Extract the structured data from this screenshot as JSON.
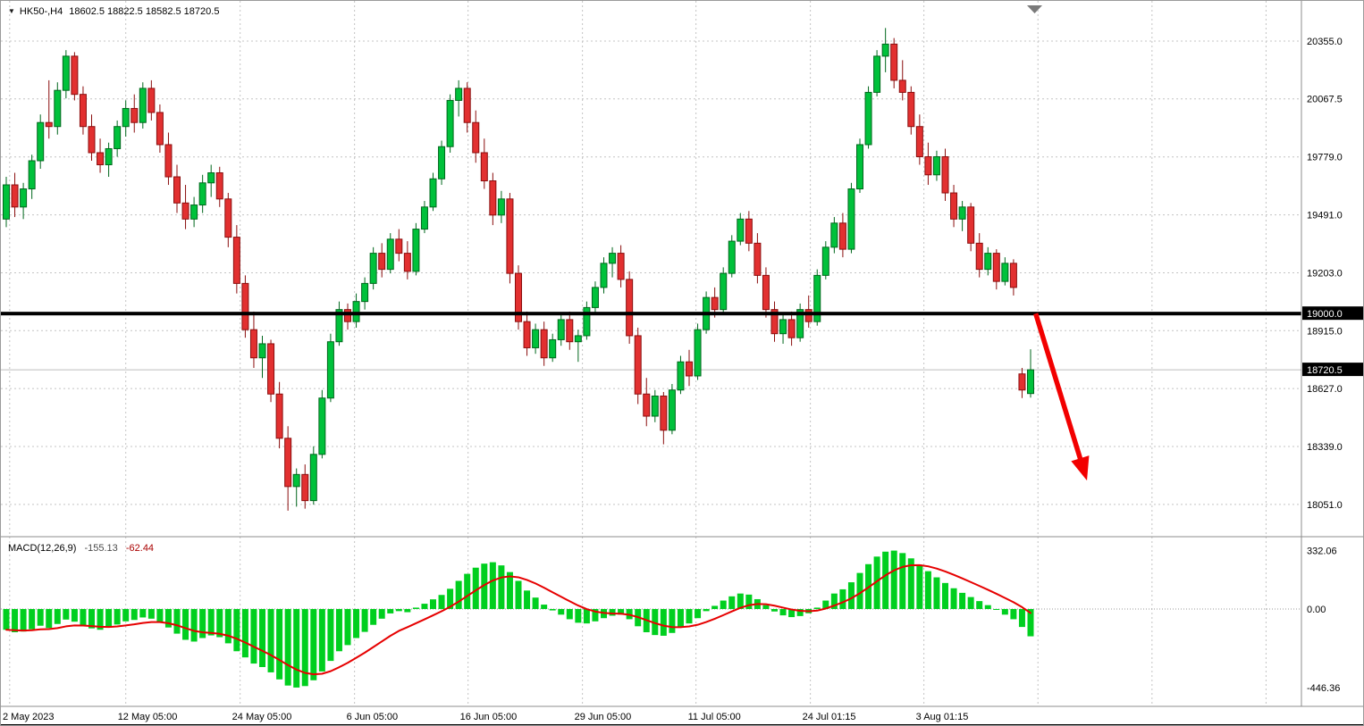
{
  "header": {
    "marker": "▼",
    "symbol": "HK50-,H4",
    "ohlc": "18602.5 18822.5 18582.5 18720.5"
  },
  "indicator": {
    "name": "MACD(12,26,9)",
    "macd_value": "-155.13",
    "signal_value": "-62.44"
  },
  "price_axis": {
    "labels": [
      "20355.0",
      "20067.5",
      "19779.0",
      "19491.0",
      "19203.0",
      "18915.0",
      "18627.0",
      "18339.0",
      "18051.0"
    ],
    "values": [
      20355,
      20067.5,
      19779,
      19491,
      19203,
      18915,
      18627,
      18339,
      18051
    ],
    "tags": [
      {
        "label": "19000.0",
        "value": 19000
      },
      {
        "label": "18720.5",
        "value": 18720.5
      }
    ]
  },
  "macd_axis": {
    "labels": [
      "332.06",
      "0.00",
      "-446.36"
    ],
    "values": [
      332.06,
      0,
      -446.36
    ]
  },
  "time_axis": [
    {
      "label": "2 May 2023",
      "index": 0.4
    },
    {
      "label": "12 May 05:00",
      "index": 14
    },
    {
      "label": "24 May 05:00",
      "index": 27.4
    },
    {
      "label": "6 Jun 05:00",
      "index": 40.8
    },
    {
      "label": "16 Jun 05:00",
      "index": 54.1
    },
    {
      "label": "29 Jun 05:00",
      "index": 67.5
    },
    {
      "label": "11 Jul 05:00",
      "index": 80.8
    },
    {
      "label": "24 Jul 01:15",
      "index": 94.2
    },
    {
      "label": "3 Aug 01:15",
      "index": 107.5
    }
  ],
  "colors": {
    "bull": "#00c13b",
    "bull_border": "#00671c",
    "bear": "#e23030",
    "bear_border": "#8a0e0e",
    "grid": "#c4c4c4",
    "histogram": "#00cf1f",
    "signal": "#e60000",
    "hline": "#000000",
    "current_line": "#bdbdbd",
    "arrow": "#f20000",
    "tag_bg": "#000000",
    "tag_fg": "#ffffff",
    "axis_line": "#8c8c8c"
  },
  "chart_data": {
    "type": "candlestick",
    "title": "HK50-,H4",
    "symbol": "HK50-",
    "period": "H4",
    "price_ylim": [
      17890,
      20555
    ],
    "price_yticks": [
      20355,
      20067.5,
      19779,
      19491,
      19203,
      18915,
      18627,
      18339,
      18051
    ],
    "horizontal_line": 19000,
    "current_price": 18720.5,
    "last_candle_ohlc": [
      18602.5,
      18822.5,
      18582.5,
      18720.5
    ],
    "arrow_annotation": {
      "from_index": 120.6,
      "from_price": 19000,
      "to_index": 126.6,
      "to_price": 18170
    },
    "ohlc_fields": [
      "open",
      "high",
      "low",
      "close"
    ],
    "candles": [
      [
        19470,
        19680,
        19430,
        19640
      ],
      [
        19640,
        19700,
        19480,
        19530
      ],
      [
        19530,
        19650,
        19470,
        19620
      ],
      [
        19620,
        19790,
        19570,
        19760
      ],
      [
        19760,
        19990,
        19720,
        19950
      ],
      [
        19950,
        20160,
        19870,
        19930
      ],
      [
        19930,
        20150,
        19890,
        20110
      ],
      [
        20110,
        20310,
        20070,
        20280
      ],
      [
        20280,
        20300,
        20060,
        20090
      ],
      [
        20090,
        20130,
        19890,
        19930
      ],
      [
        19930,
        19990,
        19760,
        19800
      ],
      [
        19800,
        19870,
        19700,
        19740
      ],
      [
        19740,
        19850,
        19680,
        19820
      ],
      [
        19820,
        19960,
        19780,
        19930
      ],
      [
        19930,
        20060,
        19880,
        20020
      ],
      [
        20020,
        20090,
        19900,
        19950
      ],
      [
        19950,
        20150,
        19920,
        20120
      ],
      [
        20120,
        20160,
        19960,
        20000
      ],
      [
        20000,
        20040,
        19800,
        19840
      ],
      [
        19840,
        19900,
        19640,
        19680
      ],
      [
        19680,
        19740,
        19500,
        19550
      ],
      [
        19550,
        19640,
        19420,
        19470
      ],
      [
        19470,
        19580,
        19430,
        19540
      ],
      [
        19540,
        19690,
        19500,
        19650
      ],
      [
        19650,
        19740,
        19580,
        19700
      ],
      [
        19700,
        19730,
        19530,
        19570
      ],
      [
        19570,
        19600,
        19330,
        19380
      ],
      [
        19380,
        19440,
        19100,
        19150
      ],
      [
        19150,
        19190,
        18880,
        18920
      ],
      [
        18920,
        19010,
        18730,
        18780
      ],
      [
        18780,
        18890,
        18680,
        18850
      ],
      [
        18850,
        18870,
        18560,
        18600
      ],
      [
        18600,
        18660,
        18330,
        18380
      ],
      [
        18380,
        18440,
        18020,
        18140
      ],
      [
        18140,
        18230,
        18040,
        18200
      ],
      [
        18200,
        18250,
        18030,
        18070
      ],
      [
        18070,
        18340,
        18050,
        18300
      ],
      [
        18300,
        18620,
        18280,
        18580
      ],
      [
        18580,
        18900,
        18560,
        18860
      ],
      [
        18860,
        19060,
        18840,
        19020
      ],
      [
        19020,
        19050,
        18920,
        18960
      ],
      [
        18960,
        19100,
        18930,
        19060
      ],
      [
        19060,
        19180,
        19020,
        19150
      ],
      [
        19150,
        19330,
        19120,
        19300
      ],
      [
        19300,
        19350,
        19180,
        19220
      ],
      [
        19220,
        19400,
        19200,
        19370
      ],
      [
        19370,
        19420,
        19260,
        19300
      ],
      [
        19300,
        19360,
        19170,
        19210
      ],
      [
        19210,
        19450,
        19190,
        19420
      ],
      [
        19420,
        19560,
        19400,
        19530
      ],
      [
        19530,
        19700,
        19510,
        19670
      ],
      [
        19670,
        19860,
        19640,
        19830
      ],
      [
        19830,
        20090,
        19800,
        20060
      ],
      [
        20060,
        20160,
        19980,
        20120
      ],
      [
        20120,
        20150,
        19900,
        19950
      ],
      [
        19950,
        20010,
        19750,
        19800
      ],
      [
        19800,
        19870,
        19620,
        19660
      ],
      [
        19660,
        19700,
        19440,
        19490
      ],
      [
        19490,
        19610,
        19450,
        19570
      ],
      [
        19570,
        19600,
        19150,
        19200
      ],
      [
        19200,
        19240,
        18920,
        18960
      ],
      [
        18960,
        19010,
        18790,
        18830
      ],
      [
        18830,
        18950,
        18800,
        18920
      ],
      [
        18920,
        18960,
        18740,
        18780
      ],
      [
        18780,
        18900,
        18760,
        18870
      ],
      [
        18870,
        19000,
        18840,
        18970
      ],
      [
        18970,
        19010,
        18820,
        18860
      ],
      [
        18860,
        18920,
        18760,
        18890
      ],
      [
        18890,
        19060,
        18870,
        19030
      ],
      [
        19030,
        19160,
        19000,
        19130
      ],
      [
        19130,
        19280,
        19100,
        19250
      ],
      [
        19250,
        19330,
        19180,
        19300
      ],
      [
        19300,
        19340,
        19130,
        19170
      ],
      [
        19170,
        19210,
        18850,
        18890
      ],
      [
        18890,
        18930,
        18550,
        18600
      ],
      [
        18600,
        18680,
        18440,
        18490
      ],
      [
        18490,
        18620,
        18460,
        18590
      ],
      [
        18590,
        18610,
        18350,
        18420
      ],
      [
        18420,
        18650,
        18400,
        18620
      ],
      [
        18620,
        18790,
        18600,
        18760
      ],
      [
        18760,
        18820,
        18640,
        18690
      ],
      [
        18690,
        18950,
        18670,
        18920
      ],
      [
        18920,
        19110,
        18900,
        19080
      ],
      [
        19080,
        19130,
        18980,
        19020
      ],
      [
        19020,
        19230,
        19000,
        19200
      ],
      [
        19200,
        19390,
        19180,
        19360
      ],
      [
        19360,
        19500,
        19340,
        19470
      ],
      [
        19470,
        19510,
        19310,
        19350
      ],
      [
        19350,
        19400,
        19150,
        19190
      ],
      [
        19190,
        19230,
        18980,
        19020
      ],
      [
        19020,
        19060,
        18860,
        18900
      ],
      [
        18900,
        19000,
        18850,
        18970
      ],
      [
        18970,
        19010,
        18840,
        18880
      ],
      [
        18880,
        19050,
        18860,
        19020
      ],
      [
        19020,
        19090,
        18930,
        18960
      ],
      [
        18960,
        19220,
        18940,
        19190
      ],
      [
        19190,
        19360,
        19170,
        19330
      ],
      [
        19330,
        19480,
        19300,
        19450
      ],
      [
        19450,
        19500,
        19280,
        19320
      ],
      [
        19320,
        19650,
        19300,
        19620
      ],
      [
        19620,
        19870,
        19600,
        19840
      ],
      [
        19840,
        20130,
        19820,
        20100
      ],
      [
        20100,
        20310,
        20080,
        20280
      ],
      [
        20280,
        20420,
        20200,
        20340
      ],
      [
        20340,
        20370,
        20120,
        20160
      ],
      [
        20160,
        20260,
        20060,
        20100
      ],
      [
        20100,
        20130,
        19890,
        19930
      ],
      [
        19930,
        19990,
        19740,
        19780
      ],
      [
        19780,
        19850,
        19640,
        19690
      ],
      [
        19690,
        19810,
        19660,
        19780
      ],
      [
        19780,
        19820,
        19560,
        19600
      ],
      [
        19600,
        19640,
        19430,
        19470
      ],
      [
        19470,
        19560,
        19410,
        19530
      ],
      [
        19530,
        19550,
        19310,
        19350
      ],
      [
        19350,
        19400,
        19180,
        19220
      ],
      [
        19220,
        19330,
        19190,
        19300
      ],
      [
        19300,
        19320,
        19120,
        19160
      ],
      [
        19160,
        19280,
        19140,
        19250
      ],
      [
        19250,
        19270,
        19090,
        19130
      ],
      [
        18700,
        18730,
        18580,
        18620
      ],
      [
        18602.5,
        18822.5,
        18582.5,
        18720.5
      ]
    ],
    "macd": {
      "type": "bar+line",
      "params": "12,26,9",
      "ylim": [
        -500,
        390
      ],
      "yticks": [
        332.06,
        0,
        -446.36
      ],
      "signal_period": 9,
      "last_macd": -155.13,
      "last_signal": -62.44,
      "histogram": [
        -118,
        -132,
        -128,
        -115,
        -95,
        -108,
        -85,
        -60,
        -72,
        -95,
        -110,
        -118,
        -105,
        -88,
        -70,
        -62,
        -48,
        -55,
        -75,
        -105,
        -140,
        -175,
        -185,
        -165,
        -150,
        -160,
        -195,
        -240,
        -275,
        -310,
        -330,
        -360,
        -400,
        -435,
        -446.36,
        -438,
        -405,
        -355,
        -295,
        -240,
        -205,
        -165,
        -130,
        -90,
        -55,
        -25,
        -12,
        -18,
        8,
        30,
        55,
        80,
        115,
        160,
        200,
        235,
        258,
        266,
        248,
        210,
        160,
        105,
        65,
        25,
        -8,
        -32,
        -58,
        -78,
        -82,
        -70,
        -52,
        -38,
        -32,
        -58,
        -98,
        -132,
        -148,
        -152,
        -136,
        -105,
        -82,
        -52,
        -12,
        18,
        48,
        72,
        88,
        82,
        56,
        22,
        -14,
        -36,
        -46,
        -40,
        -24,
        8,
        48,
        88,
        112,
        152,
        205,
        255,
        298,
        326,
        332.06,
        318,
        288,
        252,
        215,
        180,
        148,
        118,
        92,
        68,
        45,
        22,
        -5,
        -32,
        -58,
        -102,
        -155.13
      ]
    }
  }
}
